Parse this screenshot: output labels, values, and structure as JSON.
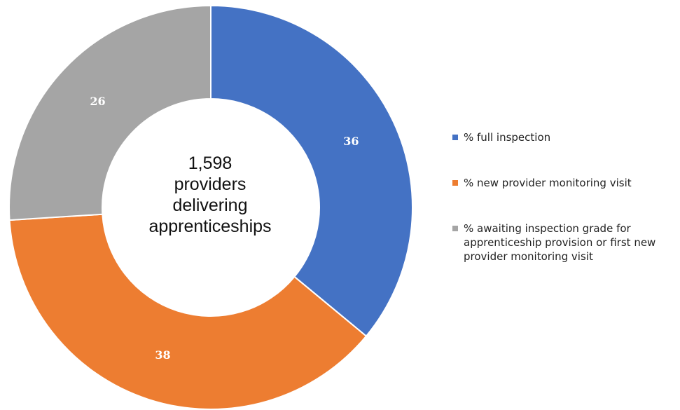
{
  "chart_data": {
    "type": "pie",
    "subtype": "donut",
    "center_text": [
      "1,598",
      "providers",
      "delivering",
      "apprenticeships"
    ],
    "slices": [
      {
        "label": "% full inspection",
        "value": 36,
        "color": "#4472C4"
      },
      {
        "label": "% new provider monitoring visit",
        "value": 38,
        "color": "#ED7D31"
      },
      {
        "label": "% awaiting inspection grade for\napprenticeship provision or first new\nprovider monitoring visit",
        "value": 26,
        "color": "#A5A5A5"
      }
    ],
    "legend_position": "right"
  }
}
